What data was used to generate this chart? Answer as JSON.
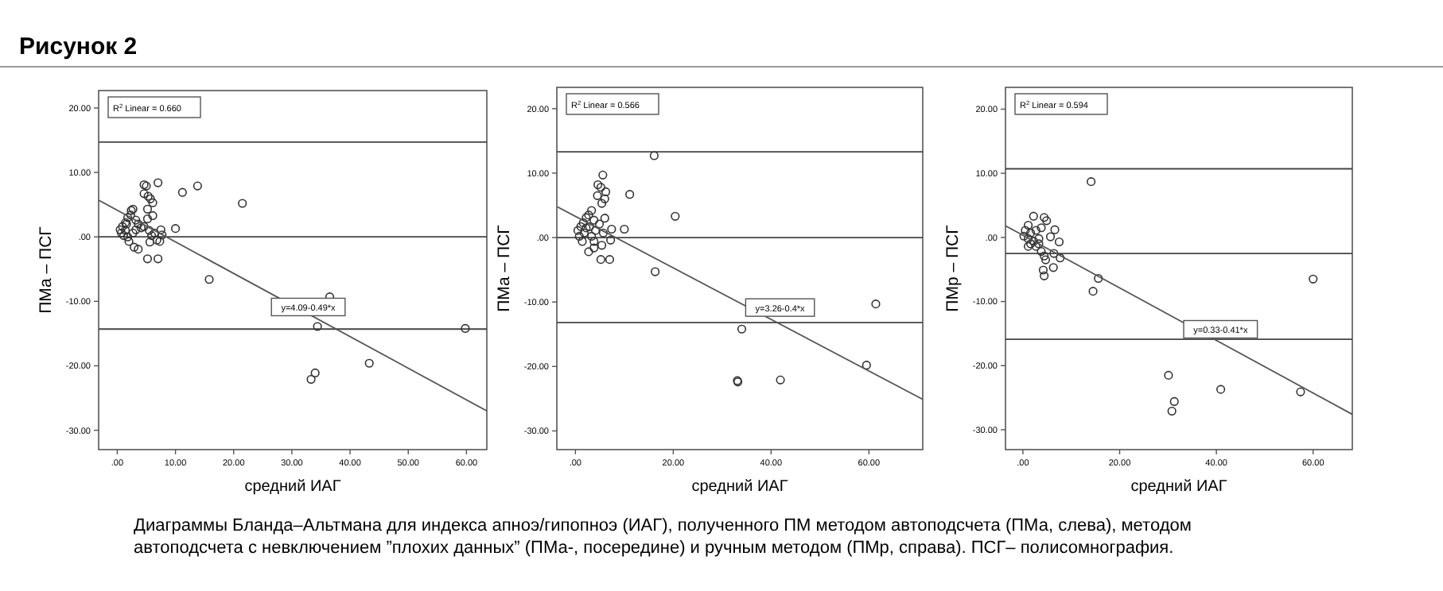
{
  "chart_data": [
    {
      "type": "scatter",
      "title": "Рисунок 2",
      "xlabel": "средний ИАГ",
      "ylabel": "ПМа – ПСГ",
      "xlim": [
        -3.2,
        63.5
      ],
      "ylim": [
        -33,
        22.7
      ],
      "xticks": [
        {
          "value": 0,
          "label": ".00"
        },
        {
          "value": 10,
          "label": "10.00"
        },
        {
          "value": 20,
          "label": "20.00"
        },
        {
          "value": 30,
          "label": "30.00"
        },
        {
          "value": 40,
          "label": "40.00"
        },
        {
          "value": 50,
          "label": "50.00"
        },
        {
          "value": 60,
          "label": "60.00"
        }
      ],
      "yticks": [
        {
          "value": 20,
          "label": "20.00"
        },
        {
          "value": 10,
          "label": "10.00"
        },
        {
          "value": 0,
          "label": ".00"
        },
        {
          "value": -10,
          "label": "-10.00"
        },
        {
          "value": -20,
          "label": "-20.00"
        },
        {
          "value": -30,
          "label": "-30.00"
        }
      ],
      "ref_lines": [
        {
          "axis": "y",
          "value": 14.7,
          "color": "#444444"
        },
        {
          "axis": "y",
          "value": 0,
          "color": "#444444"
        },
        {
          "axis": "y",
          "value": -14.3,
          "color": "#444444"
        }
      ],
      "series": [
        {
          "marker": "circle",
          "color": "#333333",
          "x": [
            4.6,
            5.0,
            7.0,
            13.8,
            11.2,
            21.5,
            4.6,
            5.3,
            5.7,
            6.1,
            2.7,
            5.2,
            6.1,
            2.3,
            1.8,
            3.2,
            1.4,
            3.6,
            0.9,
            0.5,
            0.7,
            1.1,
            1.8,
            2.7,
            4.1,
            5.5,
            6.4,
            7.5,
            10.0,
            6.8,
            7.3,
            5.6,
            2.0,
            2.9,
            3.6,
            5.2,
            7.0,
            7.7,
            15.8,
            36.5,
            34.4,
            59.8,
            43.3,
            34.0,
            33.3,
            2.4,
            1.4,
            4.6,
            5.9,
            1.6,
            5.2,
            3.2
          ],
          "values": [
            8.1,
            7.9,
            8.4,
            7.9,
            6.9,
            5.2,
            6.7,
            6.3,
            5.9,
            5.3,
            4.3,
            4.3,
            3.3,
            3.4,
            3.0,
            2.6,
            2.2,
            2.0,
            1.6,
            1.1,
            0.6,
            0.2,
            0,
            0.6,
            1.4,
            1.0,
            0.6,
            1.1,
            1.3,
            -0.5,
            -0.7,
            -0.8,
            -0.7,
            -1.6,
            -1.9,
            -3.4,
            -3.4,
            0.3,
            -6.6,
            -9.3,
            -13.9,
            -14.2,
            -19.6,
            -21.1,
            -22.1,
            4.1,
            1.0,
            1.6,
            0.2,
            2.0,
            2.8,
            1.1
          ]
        },
        {
          "type": "line",
          "color": "#555555",
          "x": [
            -3.2,
            63.5
          ],
          "values": [
            5.7,
            -27.0
          ]
        }
      ],
      "annotations": [
        "R$^{2}$ Linear = 0.660",
        "y=4.09-0.49*x",
        "Диаграммы Бланда–Альтмана для индекса апноэ/гипопноэ (ИАГ), полученного ПМ методом автоподсчета (ПМа, слева), методом автоподсчета с невключением ”плохих данных” (ПМа-, посередине) и ручным методом (ПМр, справа). ПСГ– полисомнография."
      ]
    },
    {
      "type": "scatter",
      "xlabel": "средний ИАГ",
      "ylabel": "ПМа – ПСГ",
      "xlim": [
        -3.8,
        71
      ],
      "ylim": [
        -32.9,
        23.3
      ],
      "xticks": [
        {
          "value": 0,
          "label": ".00"
        },
        {
          "value": 20,
          "label": "20.00"
        },
        {
          "value": 40,
          "label": "40.00"
        },
        {
          "value": 60,
          "label": "60.00"
        }
      ],
      "yticks": [
        {
          "value": 20,
          "label": "20.00"
        },
        {
          "value": 10,
          "label": "10.00"
        },
        {
          "value": 0,
          "label": ".00"
        },
        {
          "value": -10,
          "label": "-10.00"
        },
        {
          "value": -20,
          "label": "-20.00"
        },
        {
          "value": -30,
          "label": "-30.00"
        }
      ],
      "ref_lines": [
        {
          "axis": "y",
          "value": 13.3,
          "color": "#444444"
        },
        {
          "axis": "y",
          "value": 0,
          "color": "#444444"
        },
        {
          "axis": "y",
          "value": -13.2,
          "color": "#444444"
        }
      ],
      "series": [
        {
          "marker": "circle",
          "color": "#333333",
          "x": [
            16.1,
            5.6,
            4.6,
            5.2,
            4.5,
            6.2,
            6.0,
            11.1,
            5.4,
            20.4,
            6.0,
            3.3,
            2.7,
            2.2,
            3.8,
            1.6,
            1.1,
            0.5,
            0.8,
            1.8,
            2.9,
            4.1,
            7.4,
            10.0,
            5.7,
            7.2,
            5.4,
            1.4,
            2.7,
            3.8,
            5.2,
            7.0,
            16.3,
            61.4,
            34.0,
            33.1,
            33.2,
            41.9,
            59.5,
            3.3,
            4.9,
            3.8,
            2.2
          ],
          "values": [
            12.7,
            9.7,
            8.2,
            7.8,
            6.5,
            7.1,
            6.0,
            6.7,
            5.3,
            3.3,
            3.0,
            4.2,
            3.5,
            3.1,
            2.7,
            2.3,
            1.7,
            1.1,
            0.2,
            0.7,
            1.7,
            1.1,
            1.3,
            1.3,
            0.7,
            -0.4,
            -1.2,
            -0.6,
            -2.2,
            -1.6,
            -3.4,
            -3.4,
            -5.3,
            -10.3,
            -14.2,
            -22.2,
            -22.4,
            -22.1,
            -19.8,
            0.2,
            2.1,
            -0.6,
            1.5
          ]
        },
        {
          "type": "line",
          "color": "#555555",
          "x": [
            -3.8,
            71
          ],
          "values": [
            4.8,
            -25.1
          ]
        }
      ],
      "annotations": [
        "R$^{2}$ Linear = 0.566",
        "y=3.26-0.4*x"
      ]
    },
    {
      "type": "scatter",
      "xlabel": "средний ИАГ",
      "ylabel": "ПМр – ПСГ",
      "xlim": [
        -3.6,
        68.1
      ],
      "ylim": [
        -33.1,
        23.4
      ],
      "xticks": [
        {
          "value": 0,
          "label": ".00"
        },
        {
          "value": 20,
          "label": "20.00"
        },
        {
          "value": 40,
          "label": "40.00"
        },
        {
          "value": 60,
          "label": "60.00"
        }
      ],
      "yticks": [
        {
          "value": 20,
          "label": "20.00"
        },
        {
          "value": 10,
          "label": "10.00"
        },
        {
          "value": 0,
          "label": ".00"
        },
        {
          "value": -10,
          "label": "-10.00"
        },
        {
          "value": -20,
          "label": "-20.00"
        },
        {
          "value": -30,
          "label": "-30.00"
        }
      ],
      "ref_lines": [
        {
          "axis": "y",
          "value": 10.7,
          "color": "#444444"
        },
        {
          "axis": "y",
          "value": -2.5,
          "color": "#444444"
        },
        {
          "axis": "y",
          "value": -15.9,
          "color": "#444444"
        }
      ],
      "series": [
        {
          "marker": "circle",
          "color": "#333333",
          "x": [
            14.1,
            2.2,
            4.4,
            4.9,
            6.6,
            5.7,
            7.5,
            1.1,
            0.5,
            0.2,
            1.1,
            1.6,
            2.2,
            2.7,
            3.3,
            3.8,
            4.4,
            4.7,
            4.2,
            4.4,
            6.4,
            7.7,
            6.3,
            14.5,
            15.6,
            60.0,
            30.1,
            31.3,
            30.8,
            40.9,
            57.4,
            1.1,
            2.7,
            3.3,
            1.6,
            3.8
          ],
          "values": [
            8.7,
            3.3,
            3.1,
            2.6,
            1.2,
            0.1,
            -0.7,
            1.9,
            1.1,
            0.2,
            -0.2,
            0.7,
            -0.6,
            -1.4,
            -0.2,
            -2.2,
            -2.9,
            -3.5,
            -5.1,
            -6.0,
            -2.5,
            -3.2,
            -4.7,
            -8.4,
            -6.4,
            -6.5,
            -21.5,
            -25.6,
            -27.1,
            -23.7,
            -24.1,
            -1.4,
            1.1,
            -1.0,
            -1.0,
            1.5
          ]
        },
        {
          "type": "line",
          "color": "#555555",
          "x": [
            -3.6,
            68.1
          ],
          "values": [
            1.8,
            -27.6
          ]
        }
      ],
      "annotations": [
        "R$^{2}$ Linear = 0.594",
        "y=0.33-0.41*x"
      ]
    }
  ]
}
